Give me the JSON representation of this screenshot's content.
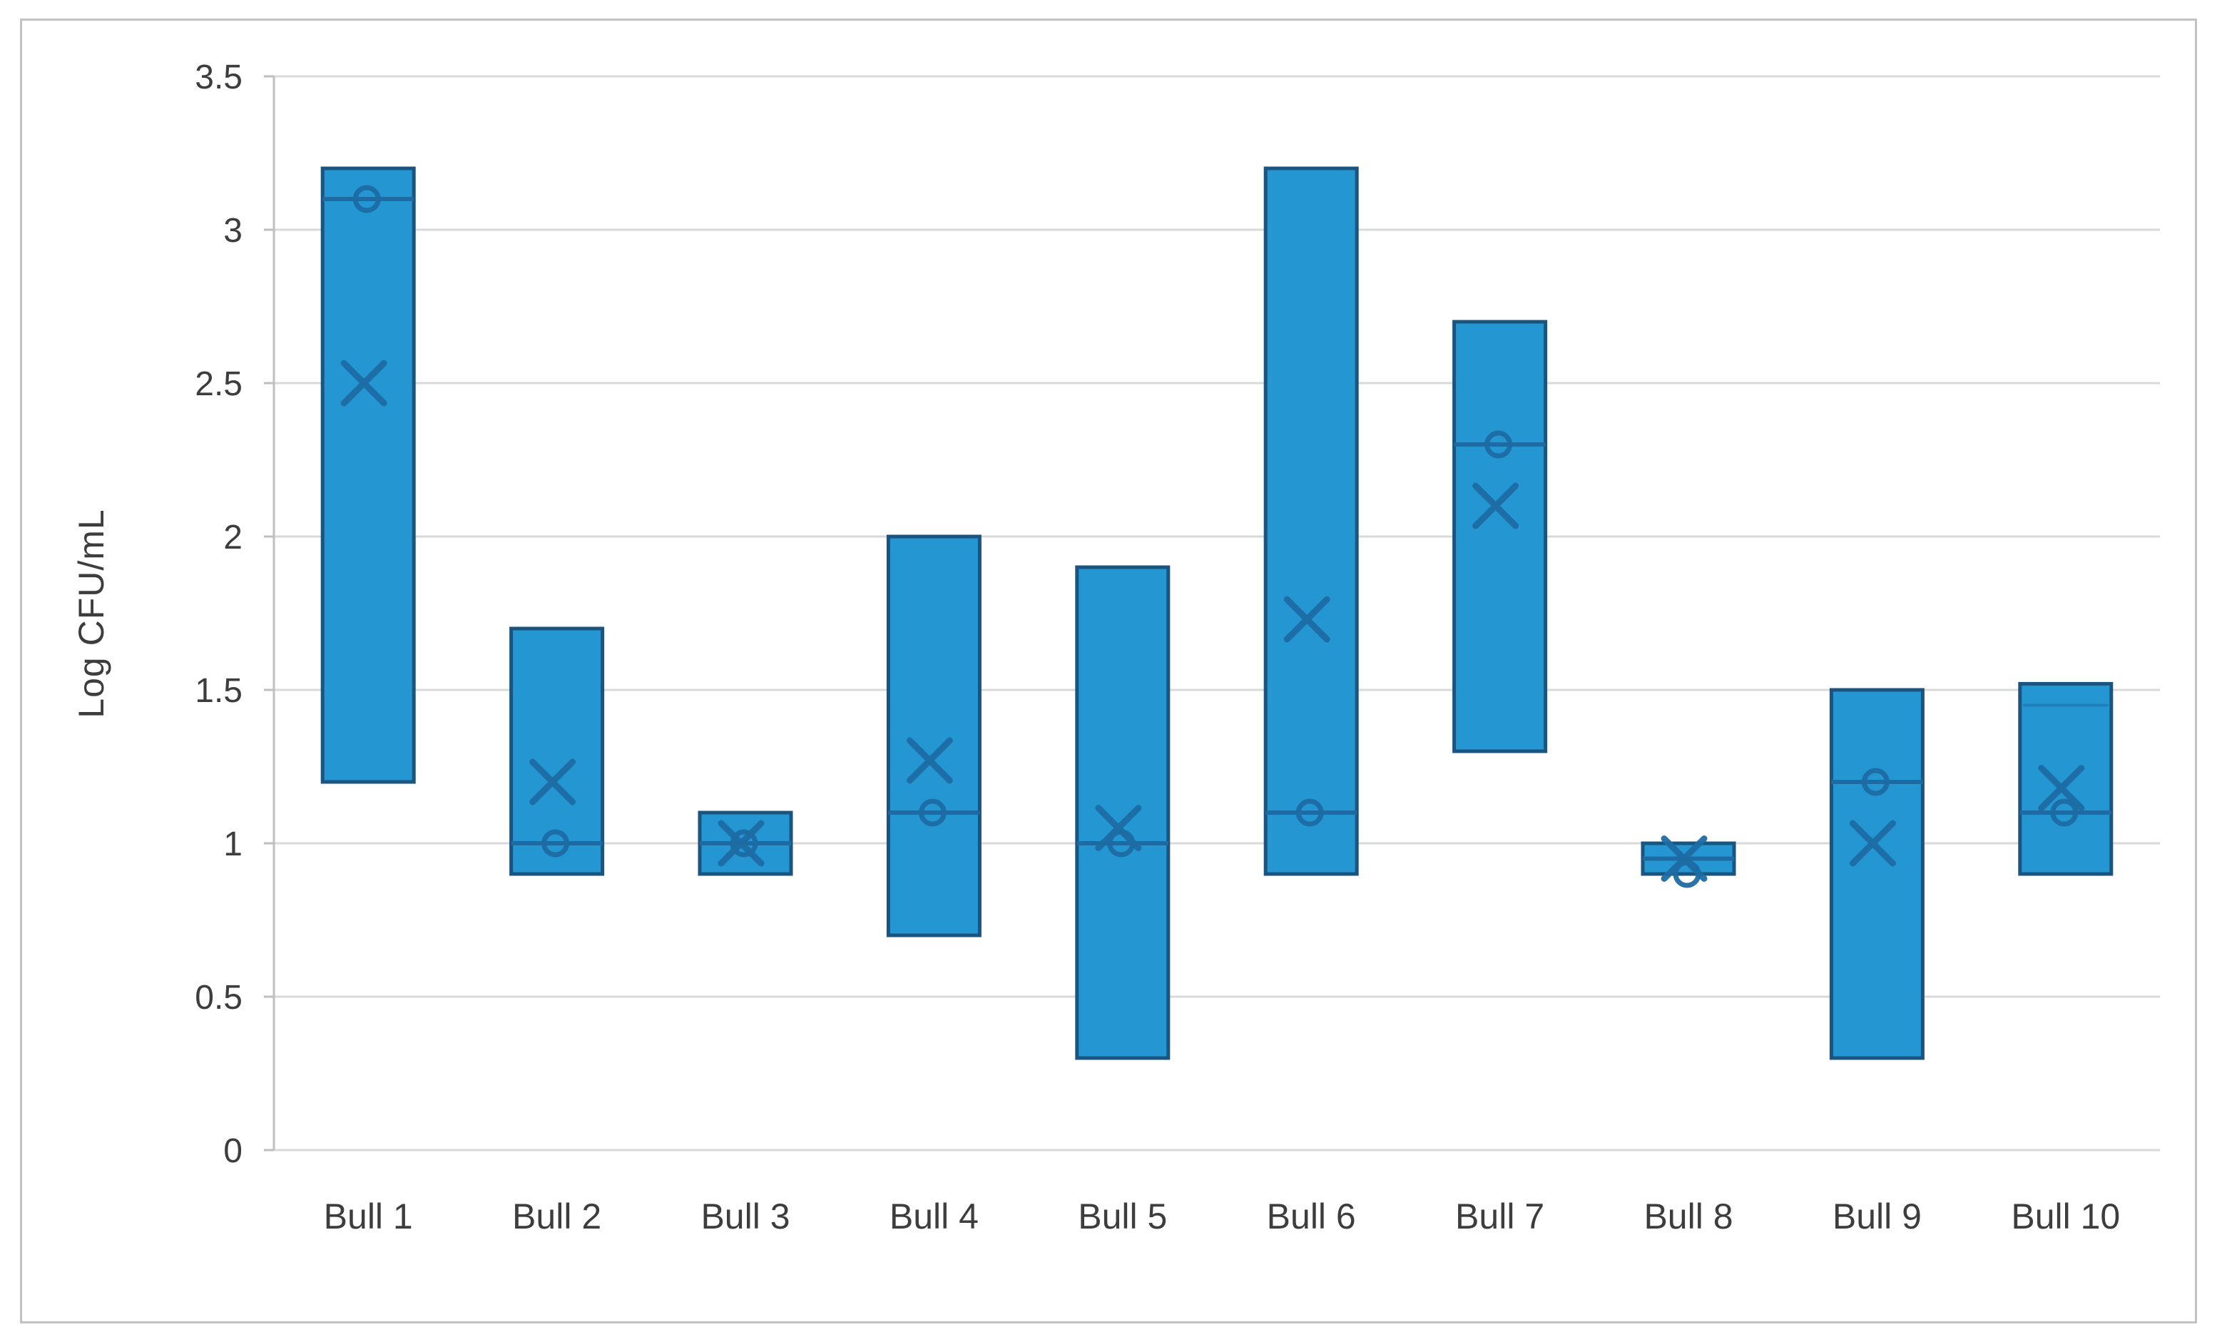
{
  "chart_data": {
    "type": "boxplot",
    "title": "",
    "xlabel": "",
    "ylabel": "Log CFU/mL",
    "ylim": [
      0,
      3.5
    ],
    "ytick_step": 0.5,
    "ytick_labels": [
      "0",
      "0.5",
      "1",
      "1.5",
      "2",
      "2.5",
      "3",
      "3.5"
    ],
    "grid": "horizontal",
    "legend": "none",
    "categories": [
      "Bull 1",
      "Bull 2",
      "Bull 3",
      "Bull 4",
      "Bull 5",
      "Bull 6",
      "Bull 7",
      "Bull 8",
      "Bull 9",
      "Bull 10"
    ],
    "boxes": [
      {
        "label": "Bull 1",
        "low": 1.2,
        "high": 3.2,
        "median": 3.1,
        "mean": 2.5,
        "point": 3.1
      },
      {
        "label": "Bull 2",
        "low": 0.9,
        "high": 1.7,
        "median": 1.0,
        "mean": 1.2,
        "point": 1.0
      },
      {
        "label": "Bull 3",
        "low": 0.9,
        "high": 1.1,
        "median": 1.0,
        "mean": 1.0,
        "point": 1.0
      },
      {
        "label": "Bull 4",
        "low": 0.7,
        "high": 2.0,
        "median": 1.1,
        "mean": 1.27,
        "point": 1.1
      },
      {
        "label": "Bull 5",
        "low": 0.3,
        "high": 1.9,
        "median": 1.0,
        "mean": 1.05,
        "point": 1.0
      },
      {
        "label": "Bull 6",
        "low": 0.9,
        "high": 3.2,
        "median": 1.1,
        "mean": 1.73,
        "point": 1.1
      },
      {
        "label": "Bull 7",
        "low": 1.3,
        "high": 2.7,
        "median": 2.3,
        "mean": 2.1,
        "point": 2.3
      },
      {
        "label": "Bull 8",
        "low": 0.9,
        "high": 1.0,
        "median": 0.95,
        "mean": 0.95,
        "point": 0.9
      },
      {
        "label": "Bull 9",
        "low": 0.3,
        "high": 1.5,
        "median": 1.2,
        "mean": 1.0,
        "point": 1.2
      },
      {
        "label": "Bull 10",
        "low": 0.9,
        "high": 1.52,
        "median": 1.1,
        "mean": 1.18,
        "point": 1.1,
        "extra_line": 1.45
      }
    ],
    "colors": {
      "box_fill": "#2497d3",
      "box_border": "#1a547f",
      "marker_stroke": "#1e6ba3",
      "gridline": "#d9d9d9",
      "axis_line": "#bfbfbf",
      "tick_text": "#3d3d3d",
      "frame_border": "#c2c2c2",
      "background": "#ffffff"
    }
  }
}
